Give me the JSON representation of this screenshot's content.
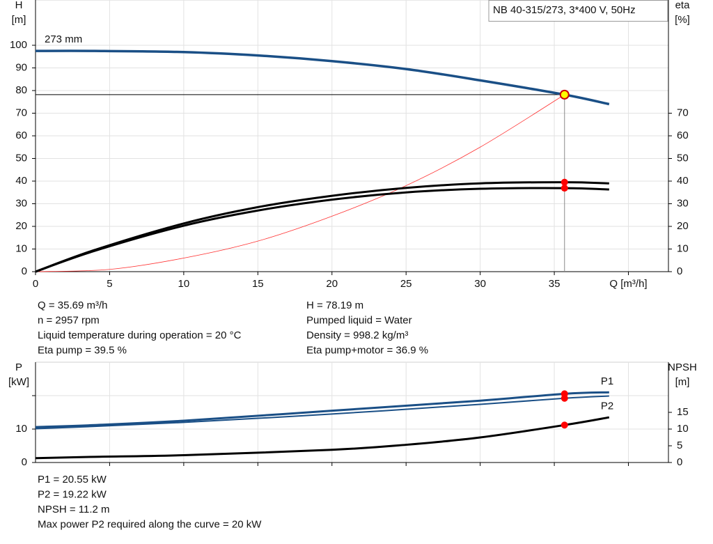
{
  "chart_data": [
    {
      "type": "line",
      "title": "NB 40-315/273, 3*400 V, 50Hz",
      "ylabel": [
        "H",
        "[m]"
      ],
      "y2label": [
        "eta",
        "[%]"
      ],
      "annotation": "273 mm",
      "xlim": [
        0,
        42.7
      ],
      "xticks": [
        0,
        5,
        10,
        15,
        20,
        25,
        30,
        35,
        {
          "value": 40,
          "label": "Q [m³/h]"
        }
      ],
      "ylim": [
        0,
        120
      ],
      "yticks": [
        0,
        10,
        20,
        30,
        40,
        50,
        60,
        70,
        80,
        90,
        100
      ],
      "y2lim": [
        0,
        120
      ],
      "y2ticks": [
        0,
        10,
        20,
        30,
        40,
        50,
        60,
        70
      ],
      "grid": true,
      "duty_x": 35.69,
      "series": [
        {
          "color": "#ff3030",
          "width": 0.8,
          "x": [
            0,
            5,
            10,
            15,
            20,
            25,
            30,
            35.69
          ],
          "values": [
            0,
            1,
            6,
            13.5,
            24.5,
            38,
            55,
            78.19
          ]
        },
        {
          "color": "#1a4f86",
          "width": 3.5,
          "marker_color": "#ffff00",
          "x": [
            0,
            4,
            10,
            15,
            20,
            25,
            30,
            35.69,
            38.7
          ],
          "values": [
            97.5,
            97.5,
            97,
            95.5,
            93,
            89.5,
            84.5,
            78.19,
            74
          ]
        },
        {
          "color": "#000000",
          "width": 3,
          "axis": "y2",
          "marker_color": "#ff0000",
          "x": [
            0,
            4,
            10,
            15,
            20,
            25,
            30,
            35.69,
            38.7
          ],
          "values": [
            0,
            9.6,
            21.3,
            28.5,
            33.5,
            37,
            39,
            39.5,
            39
          ]
        },
        {
          "color": "#000000",
          "width": 3,
          "axis": "y2",
          "marker_color": "#ff0000",
          "x": [
            0,
            4,
            10,
            15,
            20,
            25,
            30,
            35.69,
            38.7
          ],
          "values": [
            0,
            9.2,
            20.3,
            27,
            31.8,
            35,
            36.6,
            36.9,
            36.3
          ]
        }
      ],
      "info_left": [
        "Q = 35.69 m³/h",
        "n = 2957 rpm",
        "Liquid temperature during operation = 20 °C",
        "Eta pump = 39.5 %"
      ],
      "info_right": [
        "H = 78.19 m",
        "Pumped liquid = Water",
        "Density = 998.2 kg/m³",
        "Eta pump+motor = 36.9 %"
      ]
    },
    {
      "type": "line",
      "ylabel": [
        "P",
        "[kW]"
      ],
      "y2label": [
        "NPSH",
        "[m]"
      ],
      "xlim": [
        0,
        42.7
      ],
      "xticks": [
        5,
        10,
        15,
        20,
        25,
        30,
        35,
        40
      ],
      "xtick_labels": false,
      "ylim": [
        0,
        30
      ],
      "yticks": [
        0,
        10,
        {
          "value": 20,
          "label": null
        }
      ],
      "y2lim": [
        0,
        30
      ],
      "y2ticks": [
        0,
        5,
        10,
        15
      ],
      "grid": true,
      "duty_x": 35.69,
      "series": [
        {
          "name": "P1",
          "color": "#1a4f86",
          "width": 3,
          "marker_color": "#ff0000",
          "x": [
            0,
            4,
            10,
            20,
            30,
            35.69,
            38.7
          ],
          "values": [
            10.6,
            11.2,
            12.5,
            15.5,
            18.5,
            20.55,
            21
          ]
        },
        {
          "name": "P2",
          "color": "#1a4f86",
          "width": 2,
          "marker_color": "#ff0000",
          "x": [
            0,
            4,
            10,
            20,
            30,
            35.69,
            38.7
          ],
          "values": [
            10.1,
            10.8,
            12,
            14.5,
            17.4,
            19.22,
            19.9
          ]
        },
        {
          "color": "#000000",
          "width": 3,
          "axis": "y2",
          "marker_color": "#ff0000",
          "x": [
            0,
            4,
            10,
            20,
            25,
            30,
            35.69,
            38.7
          ],
          "values": [
            1.3,
            1.7,
            2.2,
            3.8,
            5.3,
            7.5,
            11.2,
            13.5
          ]
        }
      ],
      "info": [
        "P1 = 20.55 kW",
        "P2 = 19.22 kW",
        "NPSH = 11.2 m",
        "Max power P2 required along the curve = 20 kW"
      ]
    }
  ]
}
